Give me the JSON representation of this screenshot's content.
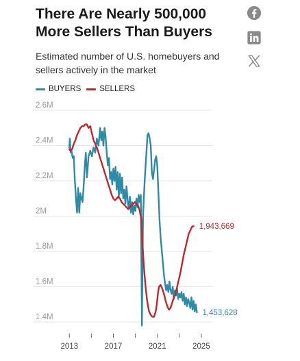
{
  "header": {
    "title": "There Are Nearly 500,000 More Sellers Than Buyers",
    "subtitle": "Estimated number of U.S. homebuyers and sellers actively in the market"
  },
  "share": {
    "icons": [
      "facebook-icon",
      "linkedin-icon",
      "x-icon"
    ],
    "color": "#8a8a8a"
  },
  "legend": {
    "items": [
      {
        "label": "BUYERS",
        "color": "#2f8aa6"
      },
      {
        "label": "SELLERS",
        "color": "#c0272d"
      }
    ]
  },
  "chart_data": {
    "type": "line",
    "xlim": [
      2012.3,
      2026.0
    ],
    "ylim": [
      1.35,
      2.6
    ],
    "y_ticks": [
      {
        "value": 2.6,
        "label": "2.6M"
      },
      {
        "value": 2.4,
        "label": "2.4M"
      },
      {
        "value": 2.2,
        "label": "2.2M"
      },
      {
        "value": 2.0,
        "label": "2M"
      },
      {
        "value": 1.8,
        "label": "1.8M"
      },
      {
        "value": 1.6,
        "label": "1.6M"
      },
      {
        "value": 1.4,
        "label": "1.4M"
      }
    ],
    "x_ticks": [
      {
        "value": 2013,
        "label": "2013"
      },
      {
        "value": 2015,
        "label": ""
      },
      {
        "value": 2017,
        "label": "2017"
      },
      {
        "value": 2019,
        "label": ""
      },
      {
        "value": 2021,
        "label": "2021"
      },
      {
        "value": 2023,
        "label": ""
      },
      {
        "value": 2025,
        "label": "2025"
      }
    ],
    "grid": true,
    "series": [
      {
        "name": "BUYERS",
        "color": "#2f8aa6",
        "end_label": "1,453,628",
        "points": [
          [
            2013.0,
            2.39
          ],
          [
            2013.05,
            2.44
          ],
          [
            2013.12,
            2.36
          ],
          [
            2013.2,
            2.37
          ],
          [
            2013.3,
            2.33
          ],
          [
            2013.4,
            2.34
          ],
          [
            2013.5,
            2.2
          ],
          [
            2013.6,
            2.1
          ],
          [
            2013.7,
            2.02
          ],
          [
            2013.8,
            2.16
          ],
          [
            2013.9,
            2.02
          ],
          [
            2014.0,
            2.13
          ],
          [
            2014.1,
            2.1
          ],
          [
            2014.2,
            2.08
          ],
          [
            2014.3,
            2.17
          ],
          [
            2014.4,
            2.28
          ],
          [
            2014.5,
            2.36
          ],
          [
            2014.6,
            2.22
          ],
          [
            2014.75,
            2.34
          ],
          [
            2014.9,
            2.37
          ],
          [
            2015.05,
            2.34
          ],
          [
            2015.2,
            2.39
          ],
          [
            2015.35,
            2.36
          ],
          [
            2015.5,
            2.44
          ],
          [
            2015.65,
            2.4
          ],
          [
            2015.8,
            2.5
          ],
          [
            2015.9,
            2.43
          ],
          [
            2016.0,
            2.48
          ],
          [
            2016.1,
            2.4
          ],
          [
            2016.2,
            2.5
          ],
          [
            2016.3,
            2.45
          ],
          [
            2016.4,
            2.36
          ],
          [
            2016.5,
            2.29
          ],
          [
            2016.6,
            2.33
          ],
          [
            2016.7,
            2.21
          ],
          [
            2016.8,
            2.25
          ],
          [
            2016.9,
            2.18
          ],
          [
            2017.0,
            2.27
          ],
          [
            2017.1,
            2.2
          ],
          [
            2017.2,
            2.28
          ],
          [
            2017.3,
            2.15
          ],
          [
            2017.4,
            2.25
          ],
          [
            2017.5,
            2.11
          ],
          [
            2017.6,
            2.24
          ],
          [
            2017.7,
            2.13
          ],
          [
            2017.8,
            2.22
          ],
          [
            2017.9,
            2.1
          ],
          [
            2018.0,
            2.15
          ],
          [
            2018.1,
            2.07
          ],
          [
            2018.2,
            2.17
          ],
          [
            2018.3,
            2.09
          ],
          [
            2018.4,
            2.04
          ],
          [
            2018.5,
            2.11
          ],
          [
            2018.6,
            2.02
          ],
          [
            2018.7,
            2.08
          ],
          [
            2018.8,
            2.01
          ],
          [
            2018.9,
            2.06
          ],
          [
            2019.0,
            2.03
          ],
          [
            2019.1,
            2.1
          ],
          [
            2019.2,
            2.05
          ],
          [
            2019.3,
            2.12
          ],
          [
            2019.4,
            2.08
          ],
          [
            2019.5,
            2.12
          ],
          [
            2019.6,
            1.38
          ],
          [
            2019.7,
            2.0
          ],
          [
            2019.85,
            2.2
          ],
          [
            2020.0,
            2.35
          ],
          [
            2020.1,
            2.46
          ],
          [
            2020.2,
            2.47
          ],
          [
            2020.3,
            2.44
          ],
          [
            2020.4,
            2.4
          ],
          [
            2020.5,
            2.25
          ],
          [
            2020.6,
            2.21
          ],
          [
            2020.7,
            2.26
          ],
          [
            2020.8,
            2.32
          ],
          [
            2020.9,
            2.34
          ],
          [
            2021.0,
            2.28
          ],
          [
            2021.1,
            2.13
          ],
          [
            2021.2,
            1.98
          ],
          [
            2021.3,
            1.88
          ],
          [
            2021.4,
            1.81
          ],
          [
            2021.5,
            1.74
          ],
          [
            2021.6,
            1.67
          ],
          [
            2021.7,
            1.62
          ],
          [
            2021.8,
            1.58
          ],
          [
            2021.9,
            1.61
          ],
          [
            2022.0,
            1.57
          ],
          [
            2022.1,
            1.63
          ],
          [
            2022.2,
            1.58
          ],
          [
            2022.3,
            1.56
          ],
          [
            2022.4,
            1.6
          ],
          [
            2022.5,
            1.53
          ],
          [
            2022.6,
            1.58
          ],
          [
            2022.7,
            1.55
          ],
          [
            2022.8,
            1.59
          ],
          [
            2022.9,
            1.53
          ],
          [
            2023.0,
            1.56
          ],
          [
            2023.1,
            1.54
          ],
          [
            2023.2,
            1.57
          ],
          [
            2023.3,
            1.52
          ],
          [
            2023.4,
            1.56
          ],
          [
            2023.5,
            1.5
          ],
          [
            2023.6,
            1.54
          ],
          [
            2023.7,
            1.49
          ],
          [
            2023.8,
            1.53
          ],
          [
            2023.9,
            1.51
          ],
          [
            2024.0,
            1.48
          ],
          [
            2024.1,
            1.54
          ],
          [
            2024.2,
            1.47
          ],
          [
            2024.3,
            1.52
          ],
          [
            2024.4,
            1.46
          ],
          [
            2024.5,
            1.5
          ],
          [
            2024.6,
            1.455
          ]
        ]
      },
      {
        "name": "SELLERS",
        "color": "#c0272d",
        "end_label": "1,943,669",
        "points": [
          [
            2013.0,
            2.38
          ],
          [
            2013.1,
            2.37
          ],
          [
            2013.25,
            2.38
          ],
          [
            2013.4,
            2.41
          ],
          [
            2013.55,
            2.43
          ],
          [
            2013.7,
            2.46
          ],
          [
            2013.85,
            2.48
          ],
          [
            2014.0,
            2.5
          ],
          [
            2014.15,
            2.51
          ],
          [
            2014.3,
            2.51
          ],
          [
            2014.45,
            2.52
          ],
          [
            2014.6,
            2.52
          ],
          [
            2014.75,
            2.5
          ],
          [
            2014.9,
            2.51
          ],
          [
            2015.05,
            2.47
          ],
          [
            2015.2,
            2.43
          ],
          [
            2015.35,
            2.41
          ],
          [
            2015.5,
            2.39
          ],
          [
            2015.65,
            2.36
          ],
          [
            2015.8,
            2.33
          ],
          [
            2015.95,
            2.3
          ],
          [
            2016.1,
            2.27
          ],
          [
            2016.25,
            2.24
          ],
          [
            2016.4,
            2.21
          ],
          [
            2016.55,
            2.18
          ],
          [
            2016.7,
            2.15
          ],
          [
            2016.85,
            2.12
          ],
          [
            2017.0,
            2.1
          ],
          [
            2017.15,
            2.09
          ],
          [
            2017.3,
            2.1
          ],
          [
            2017.45,
            2.11
          ],
          [
            2017.6,
            2.1
          ],
          [
            2017.75,
            2.08
          ],
          [
            2017.9,
            2.07
          ],
          [
            2018.05,
            2.06
          ],
          [
            2018.2,
            2.05
          ],
          [
            2018.35,
            2.04
          ],
          [
            2018.5,
            2.05
          ],
          [
            2018.65,
            2.06
          ],
          [
            2018.8,
            2.07
          ],
          [
            2018.95,
            2.08
          ],
          [
            2019.1,
            2.07
          ],
          [
            2019.25,
            2.06
          ],
          [
            2019.4,
            2.03
          ],
          [
            2019.55,
            1.98
          ],
          [
            2019.65,
            1.85
          ],
          [
            2019.75,
            1.74
          ],
          [
            2019.85,
            1.66
          ],
          [
            2019.95,
            1.59
          ],
          [
            2020.05,
            1.53
          ],
          [
            2020.15,
            1.49
          ],
          [
            2020.25,
            1.46
          ],
          [
            2020.4,
            1.44
          ],
          [
            2020.55,
            1.43
          ],
          [
            2020.7,
            1.43
          ],
          [
            2020.85,
            1.46
          ],
          [
            2020.95,
            1.5
          ],
          [
            2021.05,
            1.56
          ],
          [
            2021.15,
            1.6
          ],
          [
            2021.3,
            1.61
          ],
          [
            2021.45,
            1.59
          ],
          [
            2021.6,
            1.56
          ],
          [
            2021.75,
            1.52
          ],
          [
            2021.9,
            1.49
          ],
          [
            2022.05,
            1.47
          ],
          [
            2022.2,
            1.48
          ],
          [
            2022.35,
            1.51
          ],
          [
            2022.5,
            1.54
          ],
          [
            2022.65,
            1.56
          ],
          [
            2022.8,
            1.6
          ],
          [
            2022.95,
            1.64
          ],
          [
            2023.1,
            1.68
          ],
          [
            2023.25,
            1.73
          ],
          [
            2023.4,
            1.78
          ],
          [
            2023.55,
            1.82
          ],
          [
            2023.7,
            1.86
          ],
          [
            2023.85,
            1.9
          ],
          [
            2024.0,
            1.92
          ],
          [
            2024.15,
            1.94
          ],
          [
            2024.3,
            1.944
          ]
        ]
      }
    ]
  }
}
